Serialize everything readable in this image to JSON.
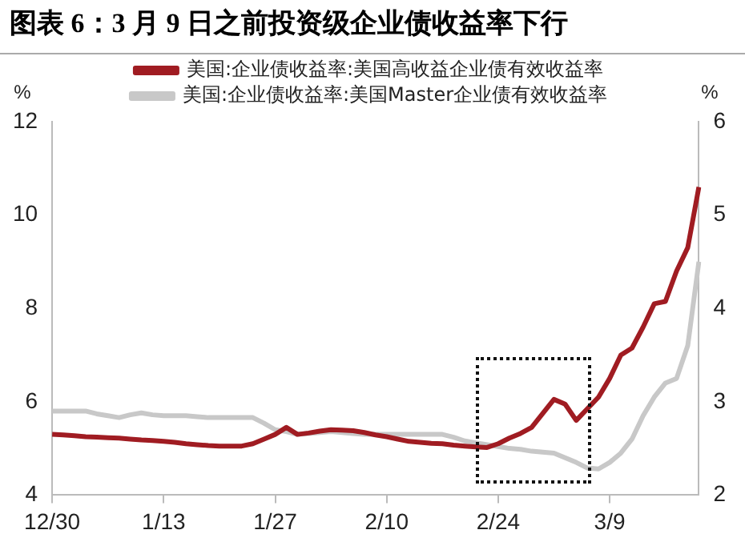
{
  "chart_data": {
    "type": "line",
    "title": "图表 6：3 月 9 日之前投资级企业债收益率下行",
    "ylabel": "%",
    "y2label": "%",
    "categories": [
      "12/30",
      null,
      null,
      null,
      null,
      null,
      null,
      null,
      null,
      null,
      "1/13",
      null,
      null,
      null,
      null,
      null,
      null,
      null,
      null,
      null,
      "1/27",
      null,
      null,
      null,
      null,
      null,
      null,
      null,
      null,
      null,
      "2/10",
      null,
      null,
      null,
      null,
      null,
      null,
      null,
      null,
      null,
      "2/24",
      null,
      null,
      null,
      null,
      null,
      null,
      null,
      null,
      null,
      "3/9",
      null,
      null,
      null,
      null,
      null,
      null,
      null,
      null
    ],
    "ylim": [
      4,
      12
    ],
    "yticks": [
      4,
      6,
      8,
      10,
      12
    ],
    "y2lim": [
      2,
      6
    ],
    "y2ticks": [
      2,
      3,
      4,
      5,
      6
    ],
    "legend": "top",
    "grid": false,
    "marker": "none",
    "line_style": "solid",
    "series": [
      {
        "name": "美国:企业债收益率:美国高收益企业债有效收益率",
        "color": "#a01c22",
        "values": [
          5.3,
          5.29,
          5.27,
          5.25,
          5.24,
          5.23,
          5.22,
          5.2,
          5.18,
          5.17,
          5.15,
          5.13,
          5.1,
          5.08,
          5.06,
          5.05,
          5.05,
          5.05,
          5.1,
          5.2,
          5.3,
          5.45,
          5.3,
          5.33,
          5.37,
          5.4,
          5.39,
          5.38,
          5.34,
          5.29,
          5.25,
          5.2,
          5.15,
          5.13,
          5.11,
          5.1,
          5.07,
          5.05,
          5.03,
          5.02,
          5.1,
          5.22,
          5.32,
          5.45,
          5.75,
          6.05,
          5.95,
          5.6,
          5.85,
          6.1,
          6.5,
          7.0,
          7.15,
          7.6,
          8.1,
          8.15,
          8.8,
          9.3,
          10.6
        ]
      },
      {
        "name": "美国:企业债收益率:美国Master企业债有效收益率",
        "color": "#c8c8c8",
        "axis": "y2",
        "values": [
          2.9,
          2.9,
          2.9,
          2.9,
          2.87,
          2.85,
          2.83,
          2.86,
          2.88,
          2.86,
          2.85,
          2.85,
          2.85,
          2.84,
          2.83,
          2.83,
          2.83,
          2.83,
          2.83,
          2.77,
          2.7,
          2.68,
          2.65,
          2.66,
          2.67,
          2.68,
          2.67,
          2.66,
          2.65,
          2.65,
          2.65,
          2.65,
          2.65,
          2.65,
          2.65,
          2.65,
          2.62,
          2.58,
          2.56,
          2.54,
          2.52,
          2.5,
          2.49,
          2.47,
          2.46,
          2.45,
          2.4,
          2.35,
          2.29,
          2.28,
          2.35,
          2.45,
          2.6,
          2.85,
          3.05,
          3.2,
          3.25,
          3.6,
          4.5
        ]
      }
    ]
  }
}
